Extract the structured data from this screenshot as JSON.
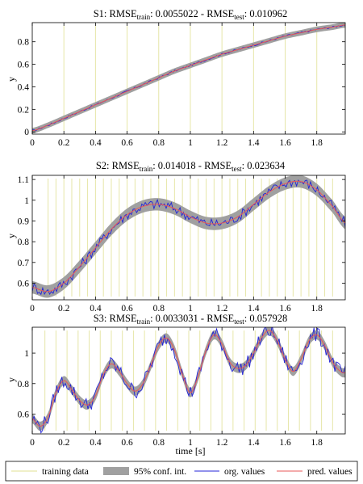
{
  "legend": {
    "training": "training data",
    "conf": "95% conf. int.",
    "org": "org. values",
    "pred": "pred. values"
  },
  "colors": {
    "training": "#e6e6a8",
    "conf": "#a0a0a0",
    "org": "#2323d8",
    "pred": "#e85858"
  },
  "chart_data": [
    {
      "type": "line",
      "title_prefix": "S1: RMSE",
      "title_sub1": "train",
      "title_mid": ": 0.0055022 - RMSE",
      "title_sub2": "test",
      "title_suffix": ": 0.010962",
      "xlabel": "",
      "ylabel": "y",
      "xlim": [
        0,
        1.98
      ],
      "ylim": [
        -0.02,
        0.97
      ],
      "xticks": [
        "0",
        "0.2",
        "0.4",
        "0.6",
        "0.8",
        "1",
        "1.2",
        "1.4",
        "1.6",
        "1.8"
      ],
      "yticks": [
        "0",
        "0.2",
        "0.4",
        "0.6",
        "0.8"
      ],
      "training_x": [
        0.2,
        0.4,
        0.6,
        0.8,
        1.0,
        1.2,
        1.4,
        1.6,
        1.8
      ],
      "x": [
        0,
        0.1,
        0.2,
        0.3,
        0.4,
        0.5,
        0.6,
        0.7,
        0.8,
        0.9,
        1.0,
        1.1,
        1.2,
        1.3,
        1.4,
        1.5,
        1.6,
        1.7,
        1.8,
        1.9,
        1.98
      ],
      "pred": [
        0.01,
        0.06,
        0.12,
        0.18,
        0.24,
        0.3,
        0.36,
        0.42,
        0.48,
        0.54,
        0.59,
        0.64,
        0.69,
        0.73,
        0.77,
        0.81,
        0.85,
        0.88,
        0.91,
        0.93,
        0.95
      ],
      "band": 0.025,
      "noise": 0.008
    },
    {
      "type": "line",
      "title_prefix": "S2: RMSE",
      "title_sub1": "train",
      "title_mid": ": 0.014018 - RMSE",
      "title_sub2": "test",
      "title_suffix": ": 0.023634",
      "xlabel": "",
      "ylabel": "y",
      "xlim": [
        0,
        1.98
      ],
      "ylim": [
        0.52,
        1.12
      ],
      "xticks": [
        "0",
        "0.2",
        "0.4",
        "0.6",
        "0.8",
        "1",
        "1.2",
        "1.4",
        "1.6",
        "1.8"
      ],
      "yticks": [
        "0.6",
        "0.7",
        "0.8",
        "0.9",
        "1",
        "1.1"
      ],
      "training_x": [
        0.1,
        0.15,
        0.2,
        0.25,
        0.3,
        0.35,
        0.4,
        0.45,
        0.5,
        0.55,
        0.6,
        0.65,
        0.7,
        0.75,
        0.8,
        0.85,
        0.9,
        0.95,
        1.0,
        1.05,
        1.1,
        1.15,
        1.2,
        1.25,
        1.3,
        1.35,
        1.4,
        1.45,
        1.5,
        1.55,
        1.6,
        1.65,
        1.7,
        1.75,
        1.8,
        1.85,
        1.9
      ],
      "x": [
        0,
        0.1,
        0.2,
        0.3,
        0.4,
        0.5,
        0.6,
        0.7,
        0.8,
        0.9,
        1.0,
        1.1,
        1.2,
        1.3,
        1.4,
        1.5,
        1.6,
        1.7,
        1.8,
        1.9,
        1.98
      ],
      "pred": [
        0.58,
        0.56,
        0.6,
        0.68,
        0.77,
        0.86,
        0.93,
        0.97,
        0.98,
        0.96,
        0.92,
        0.89,
        0.89,
        0.92,
        0.98,
        1.04,
        1.08,
        1.09,
        1.05,
        0.97,
        0.89
      ],
      "band": 0.03,
      "noise": 0.025
    },
    {
      "type": "line",
      "title_prefix": "S3: RMSE",
      "title_sub1": "train",
      "title_mid": ": 0.0033031 - RMSE",
      "title_sub2": "test",
      "title_suffix": ": 0.057928",
      "xlabel": "time [s]",
      "ylabel": "y",
      "xlim": [
        0,
        1.98
      ],
      "ylim": [
        0.47,
        1.17
      ],
      "xticks": [
        "0",
        "0.2",
        "0.4",
        "0.6",
        "0.8",
        "1",
        "1.2",
        "1.4",
        "1.6",
        "1.8"
      ],
      "yticks": [
        "0.6",
        "0.8",
        "1"
      ],
      "training_x": [
        0.08,
        0.15,
        0.22,
        0.29,
        0.36,
        0.43,
        0.5,
        0.57,
        0.64,
        0.71,
        0.78,
        0.85,
        0.92,
        0.99,
        1.06,
        1.13,
        1.2,
        1.27,
        1.34,
        1.41,
        1.48,
        1.55,
        1.62,
        1.69,
        1.76,
        1.83,
        1.9
      ],
      "x": [
        0,
        0.05,
        0.1,
        0.15,
        0.2,
        0.25,
        0.3,
        0.35,
        0.4,
        0.45,
        0.5,
        0.55,
        0.6,
        0.65,
        0.7,
        0.75,
        0.8,
        0.85,
        0.9,
        0.95,
        1.0,
        1.05,
        1.1,
        1.15,
        1.2,
        1.25,
        1.3,
        1.35,
        1.4,
        1.45,
        1.5,
        1.55,
        1.6,
        1.65,
        1.7,
        1.75,
        1.8,
        1.85,
        1.9,
        1.95,
        1.98
      ],
      "pred": [
        0.57,
        0.52,
        0.58,
        0.74,
        0.82,
        0.76,
        0.69,
        0.66,
        0.72,
        0.86,
        0.93,
        0.88,
        0.8,
        0.75,
        0.8,
        0.92,
        1.05,
        1.1,
        1.02,
        0.86,
        0.74,
        0.85,
        1.02,
        1.12,
        1.06,
        0.94,
        0.9,
        0.92,
        1.0,
        1.1,
        1.15,
        1.08,
        0.96,
        0.88,
        0.96,
        1.08,
        1.12,
        1.05,
        0.94,
        0.88,
        0.87
      ],
      "band": 0.03,
      "noise": 0.05
    }
  ]
}
